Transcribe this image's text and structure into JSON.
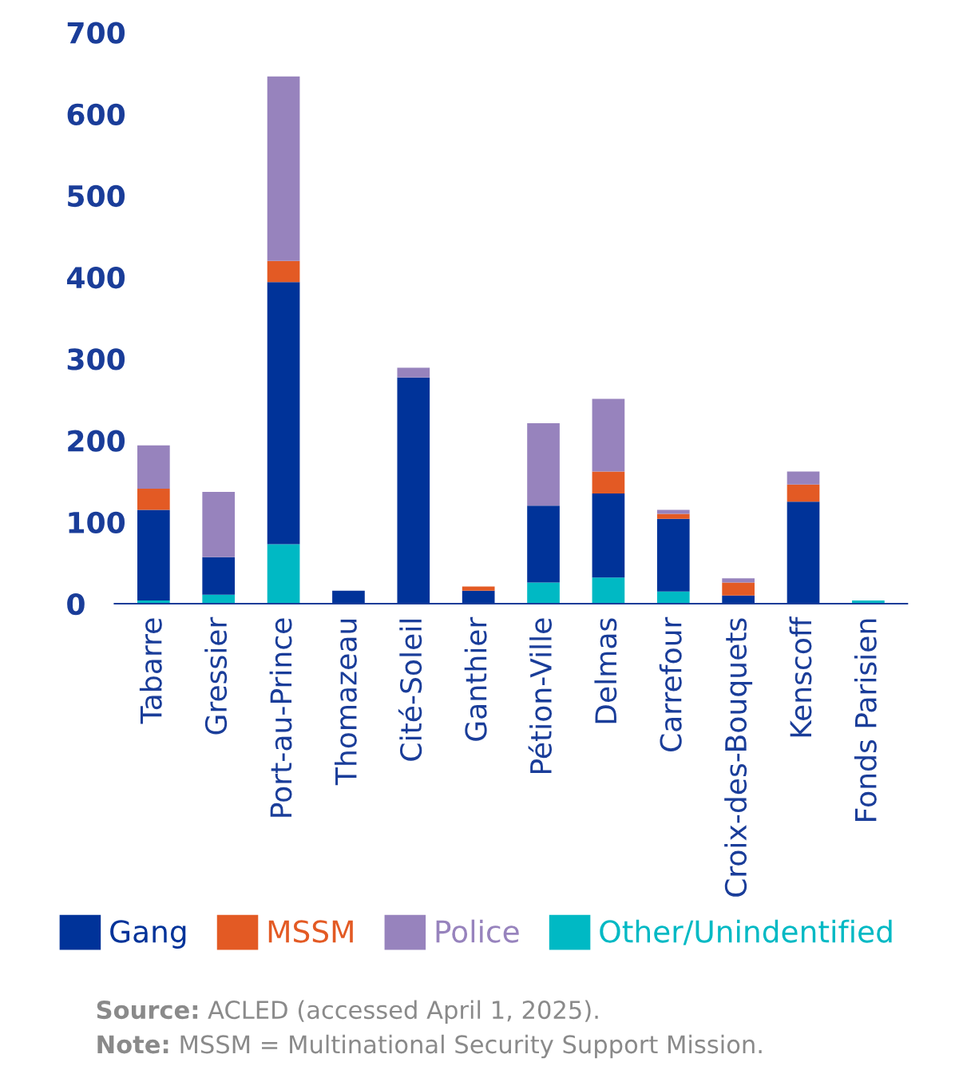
{
  "chart_data": {
    "type": "bar",
    "stacked": true,
    "categories": [
      "Tabarre",
      "Gressier",
      "Port-au-Prince",
      "Thomazeau",
      "Cité-Soleil",
      "Ganthier",
      "Pétion-Ville",
      "Delmas",
      "Carrefour",
      "Croix-des-Bouquets",
      "Kenscoff",
      "Fonds Parisien"
    ],
    "series": [
      {
        "name": "Other/Unindentified",
        "color": "#00b9c4",
        "values": [
          4,
          11,
          73,
          0,
          0,
          0,
          26,
          32,
          15,
          0,
          0,
          4
        ]
      },
      {
        "name": "Gang",
        "color": "#003399",
        "values": [
          111,
          46,
          321,
          16,
          277,
          16,
          94,
          103,
          89,
          10,
          125,
          0
        ]
      },
      {
        "name": "MSSM",
        "color": "#e35a24",
        "values": [
          26,
          0,
          26,
          0,
          0,
          5,
          0,
          27,
          6,
          16,
          21,
          0
        ]
      },
      {
        "name": "Police",
        "color": "#9783bd",
        "values": [
          53,
          80,
          226,
          0,
          12,
          0,
          101,
          89,
          5,
          5,
          16,
          0
        ]
      }
    ],
    "ylim": [
      0,
      700
    ],
    "yticks": [
      0,
      100,
      200,
      300,
      400,
      500,
      600,
      700
    ],
    "grid": false,
    "legend": "bottom",
    "annotations": [
      "Source: ACLED (accessed April 1, 2025).",
      "Note: MSSM = Multinational Security Support Mission."
    ]
  }
}
